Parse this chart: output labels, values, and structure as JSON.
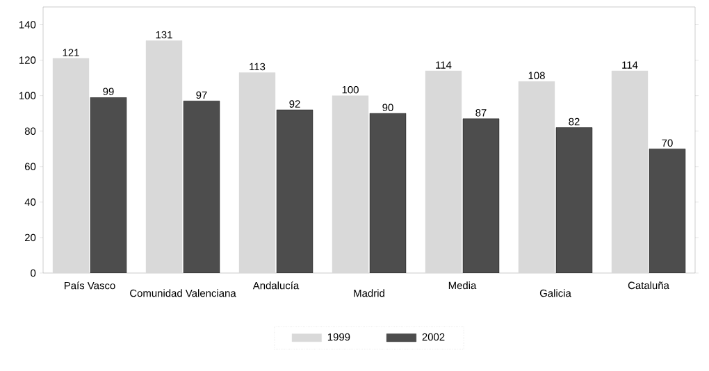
{
  "chart_data": {
    "type": "bar",
    "categories": [
      "País Vasco",
      "Comunidad Valenciana",
      "Andalucía",
      "Madrid",
      "Media",
      "Galicia",
      "Cataluña"
    ],
    "series": [
      {
        "name": "1999",
        "color": "#d9d9d9",
        "values": [
          121,
          131,
          113,
          100,
          114,
          108,
          114
        ]
      },
      {
        "name": "2002",
        "color": "#4d4d4d",
        "values": [
          99,
          97,
          92,
          90,
          87,
          82,
          70
        ]
      }
    ],
    "ylim": [
      0,
      150
    ],
    "yticks": [
      0,
      20,
      40,
      60,
      80,
      100,
      120,
      140
    ],
    "data_labels": true,
    "legend": "bottom",
    "grid": false
  }
}
